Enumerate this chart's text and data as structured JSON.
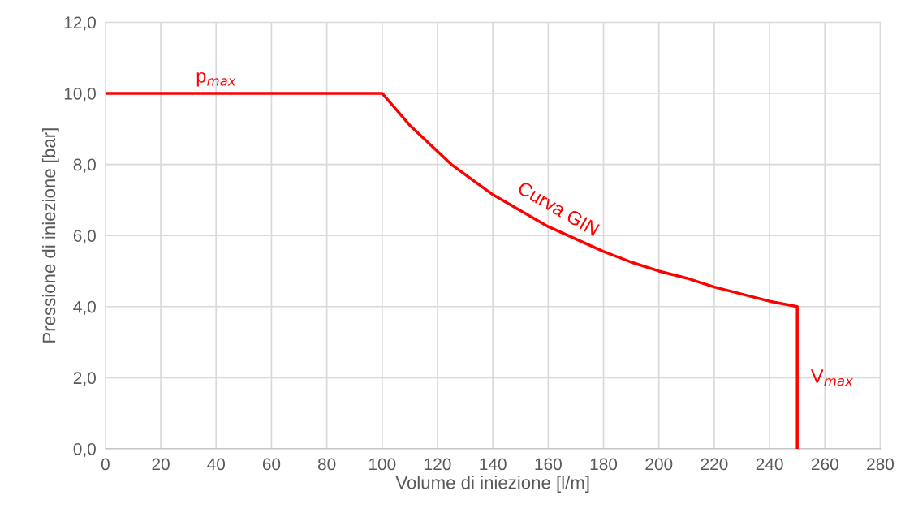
{
  "chart_data": {
    "type": "line",
    "xlabel": "Volume di iniezione [l/m]",
    "ylabel": "Pressione di iniezione [bar]",
    "x": [
      0,
      100,
      110,
      125,
      140,
      160,
      180,
      190,
      200,
      210,
      220,
      240,
      250,
      250
    ],
    "series": [
      {
        "color": "#ff0000",
        "values": [
          10,
          10,
          9.1,
          8.0,
          7.15,
          6.25,
          5.55,
          5.25,
          5.0,
          4.8,
          4.55,
          4.15,
          4.0,
          0
        ]
      }
    ],
    "xlim": [
      0,
      280
    ],
    "xticks": [
      0,
      20,
      40,
      60,
      80,
      100,
      120,
      140,
      160,
      180,
      200,
      220,
      240,
      260,
      280
    ],
    "ylim": [
      0,
      12
    ],
    "yticks": [
      {
        "value": 0,
        "label": "0,0"
      },
      {
        "value": 2,
        "label": "2,0"
      },
      {
        "value": 4,
        "label": "4,0"
      },
      {
        "value": 6,
        "label": "6,0"
      },
      {
        "value": 8,
        "label": "8,0"
      },
      {
        "value": 10,
        "label": "10,0"
      },
      {
        "value": 12,
        "label": "12,0"
      }
    ],
    "grid": true,
    "marker": "none",
    "line_style": "solid",
    "annotations": [
      {
        "text": "p$_{max}$",
        "x": 40,
        "y": 10
      },
      {
        "text": "Curva GIN",
        "x": 160,
        "y": 6.25
      },
      {
        "text": "V$_{max}$",
        "x": 250,
        "y": 2
      }
    ]
  }
}
